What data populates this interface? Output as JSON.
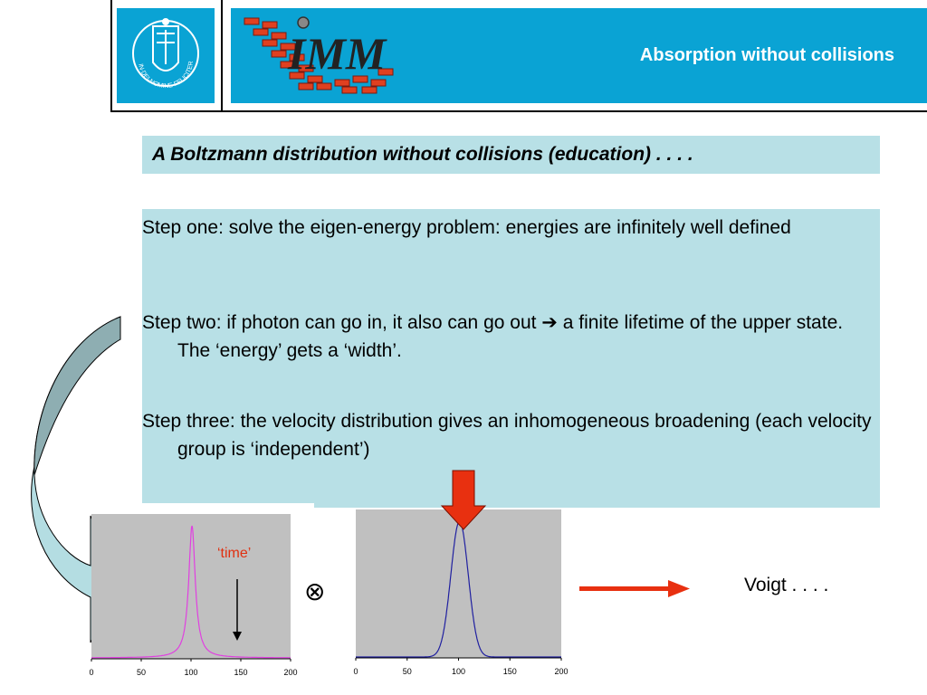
{
  "header": {
    "title": "Absorption without collisions",
    "logo_seal_text": "IN·DEI·NOMINE·FELICITER",
    "imm_logo_text": "IMM",
    "colors": {
      "bar": "#0aa3d4",
      "box": "#b8e0e6"
    }
  },
  "subtitle": "A Boltzmann distribution without collisions (education)  . . . .",
  "steps": [
    {
      "pre": "Step one: solve the eigen-energy problem: energies are infinitely well defined",
      "arrow": "",
      "post": ""
    },
    {
      "pre": "Step two: if photon can go in, it also can go out ",
      "arrow": "➔",
      "post": " a finite lifetime of the upper state. The ‘energy’ gets a ‘width’."
    },
    {
      "pre": "Step three: the velocity distribution gives an inhomogeneous broadening (each velocity group is ‘independent’)",
      "arrow": "",
      "post": ""
    }
  ],
  "plots": {
    "time_label": "‘time’",
    "convolution_symbol": "⊗",
    "voigt_label": "Voigt   . . . ."
  },
  "chart_data": [
    {
      "type": "line",
      "title": "",
      "shape": "Lorentzian",
      "center": 101,
      "fwhm": 8,
      "xlim": [
        0,
        200
      ],
      "x_ticks": [
        "0",
        "50",
        "100",
        "150",
        "200"
      ],
      "color": "#e040e0"
    },
    {
      "type": "line",
      "title": "",
      "shape": "Gaussian",
      "center": 101,
      "fwhm": 20,
      "xlim": [
        0,
        200
      ],
      "x_ticks": [
        "0",
        "50",
        "100",
        "150",
        "200"
      ],
      "color": "#2020a0"
    }
  ]
}
